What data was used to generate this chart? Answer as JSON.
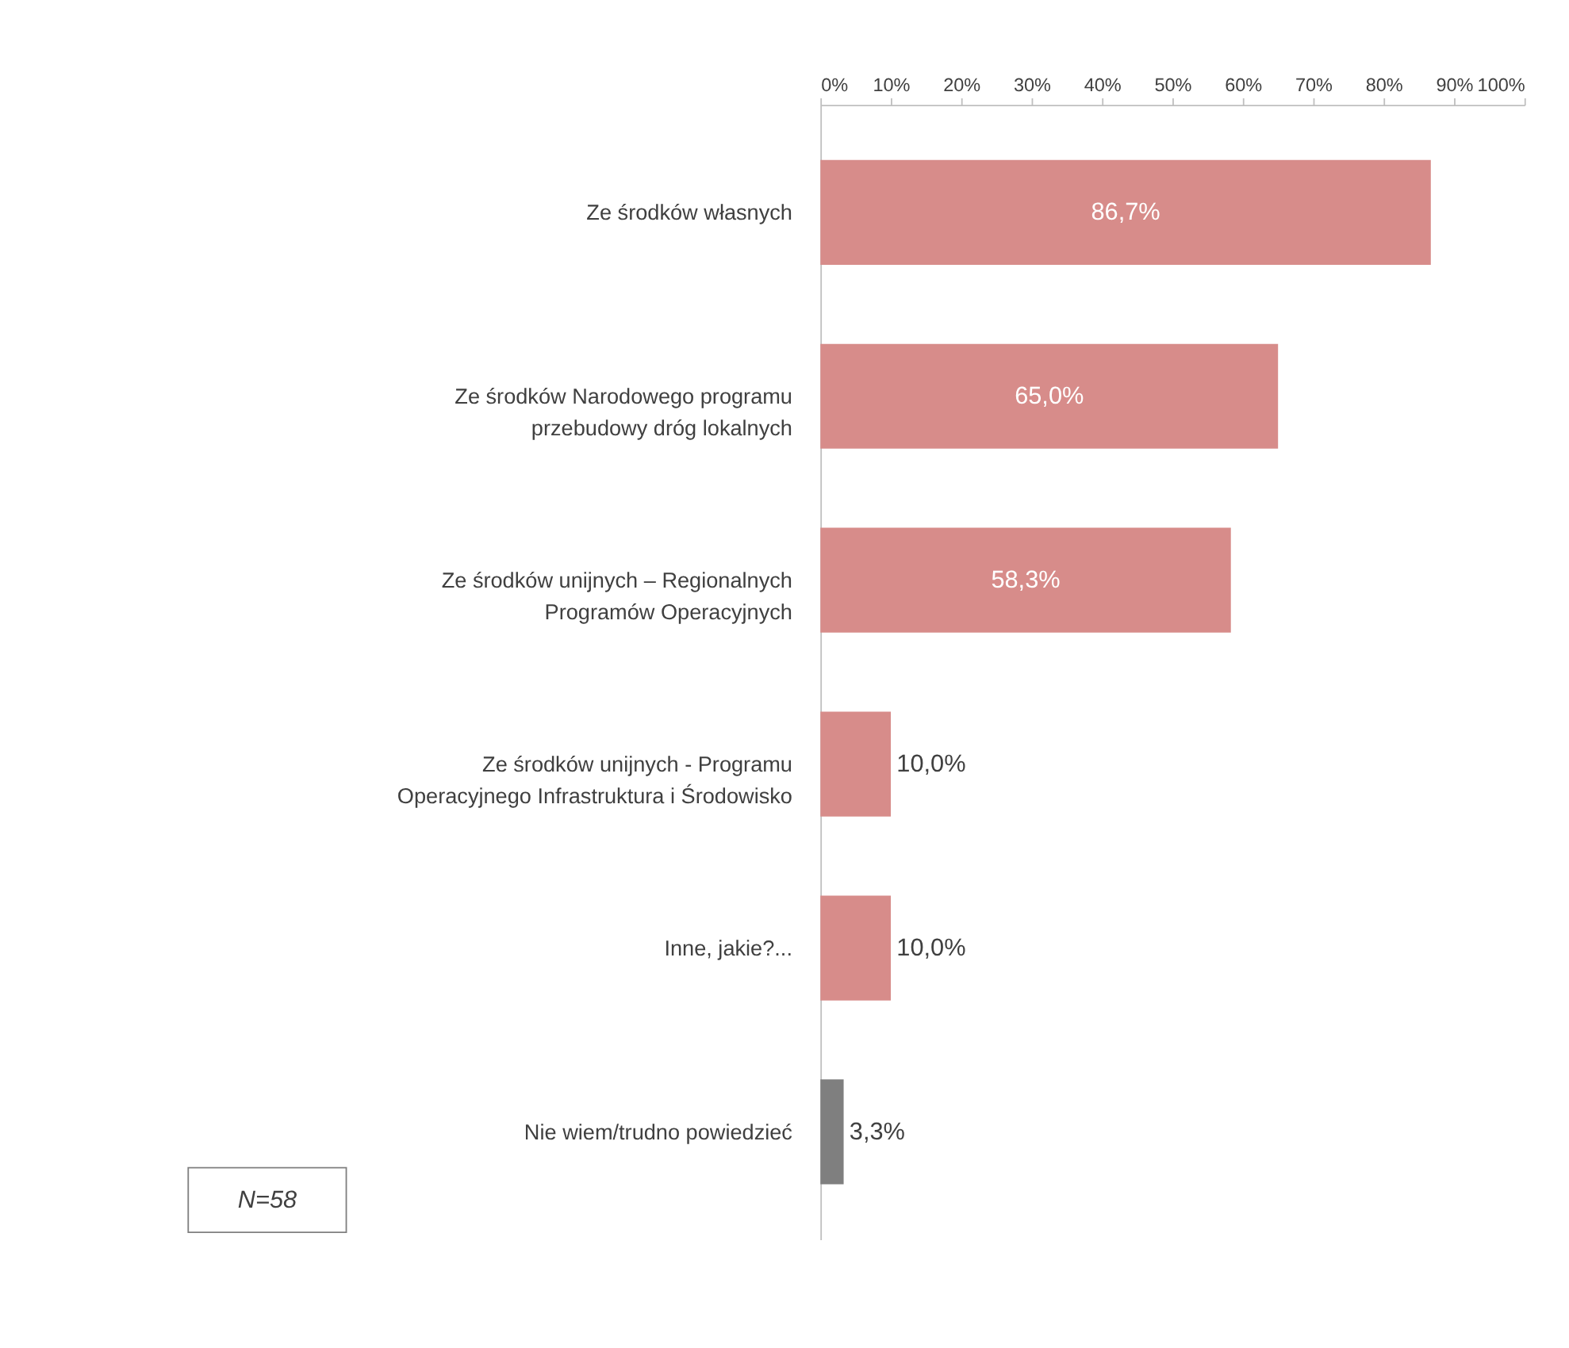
{
  "chart_data": {
    "type": "bar",
    "orientation": "horizontal",
    "categories": [
      "Ze środków własnych",
      "Ze środków Narodowego programu przebudowy dróg lokalnych",
      "Ze środków unijnych – Regionalnych Programów Operacyjnych",
      "Ze środków unijnych - Programu Operacyjnego Infrastruktura i Środowisko",
      "Inne, jakie?...",
      "Nie wiem/trudno powiedzieć"
    ],
    "values": [
      86.7,
      65.0,
      58.3,
      10.0,
      10.0,
      3.3
    ],
    "value_labels": [
      "86,7%",
      "65,0%",
      "58,3%",
      "10,0%",
      "10,0%",
      "3,3%"
    ],
    "colors": [
      "#d78c8a",
      "#d78c8a",
      "#d78c8a",
      "#d78c8a",
      "#d78c8a",
      "#7f7f7f"
    ],
    "xlim": [
      0,
      100
    ],
    "xticks": [
      {
        "value": 0,
        "label": "0%"
      },
      {
        "value": 10,
        "label": "10%"
      },
      {
        "value": 20,
        "label": "20%"
      },
      {
        "value": 30,
        "label": "30%"
      },
      {
        "value": 40,
        "label": "40%"
      },
      {
        "value": 50,
        "label": "50%"
      },
      {
        "value": 60,
        "label": "60%"
      },
      {
        "value": 70,
        "label": "70%"
      },
      {
        "value": 80,
        "label": "80%"
      },
      {
        "value": 90,
        "label": "90%"
      },
      {
        "value": 100,
        "label": "100%"
      }
    ],
    "grid": false,
    "annotations": [
      "N=58"
    ]
  }
}
